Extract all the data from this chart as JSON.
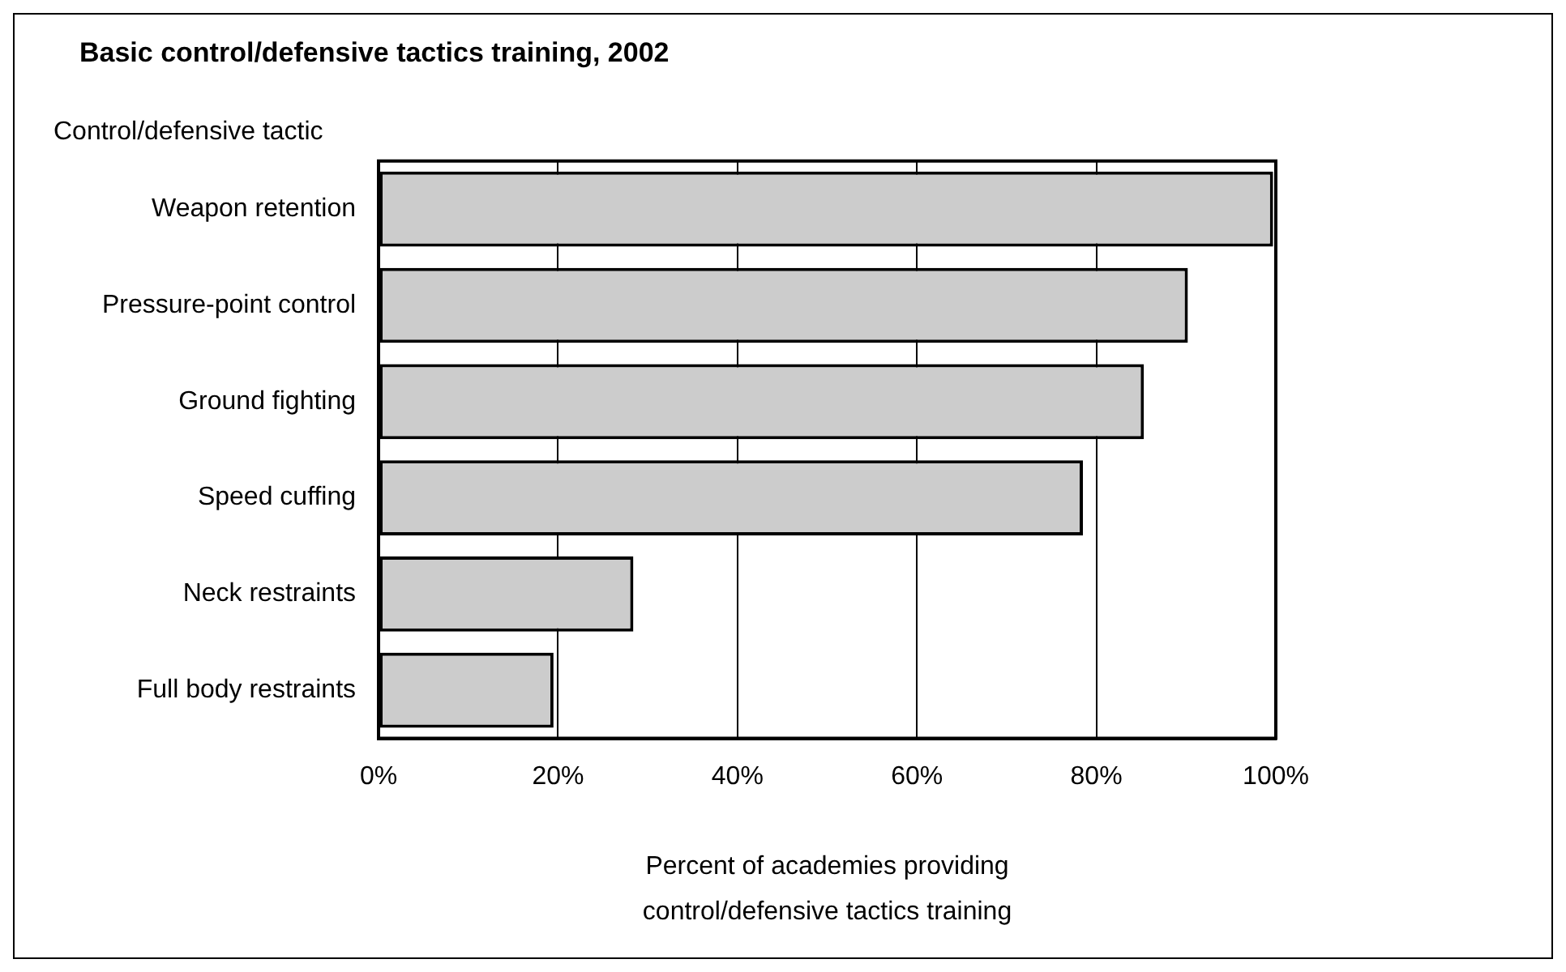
{
  "chart_data": {
    "type": "bar",
    "orientation": "horizontal",
    "title": "Basic control/defensive tactics training, 2002",
    "ylabel": "Control/defensive tactic",
    "xlabel": "Percent of academies providing control/defensive tactics training",
    "categories": [
      "Weapon retention",
      "Pressure-point control",
      "Ground fighting",
      "Speed cuffing",
      "Neck restraints",
      "Full body restraints"
    ],
    "values": [
      99.7,
      90.2,
      85.3,
      78.5,
      28.4,
      19.5
    ],
    "color": "#cccccc",
    "xlim": [
      0,
      100
    ],
    "xticks": [
      {
        "value": 0,
        "label": "0%"
      },
      {
        "value": 20,
        "label": "20%"
      },
      {
        "value": 40,
        "label": "40%"
      },
      {
        "value": 60,
        "label": "60%"
      },
      {
        "value": 80,
        "label": "80%"
      },
      {
        "value": 100,
        "label": "100%"
      }
    ],
    "grid": "x",
    "legend": false
  }
}
